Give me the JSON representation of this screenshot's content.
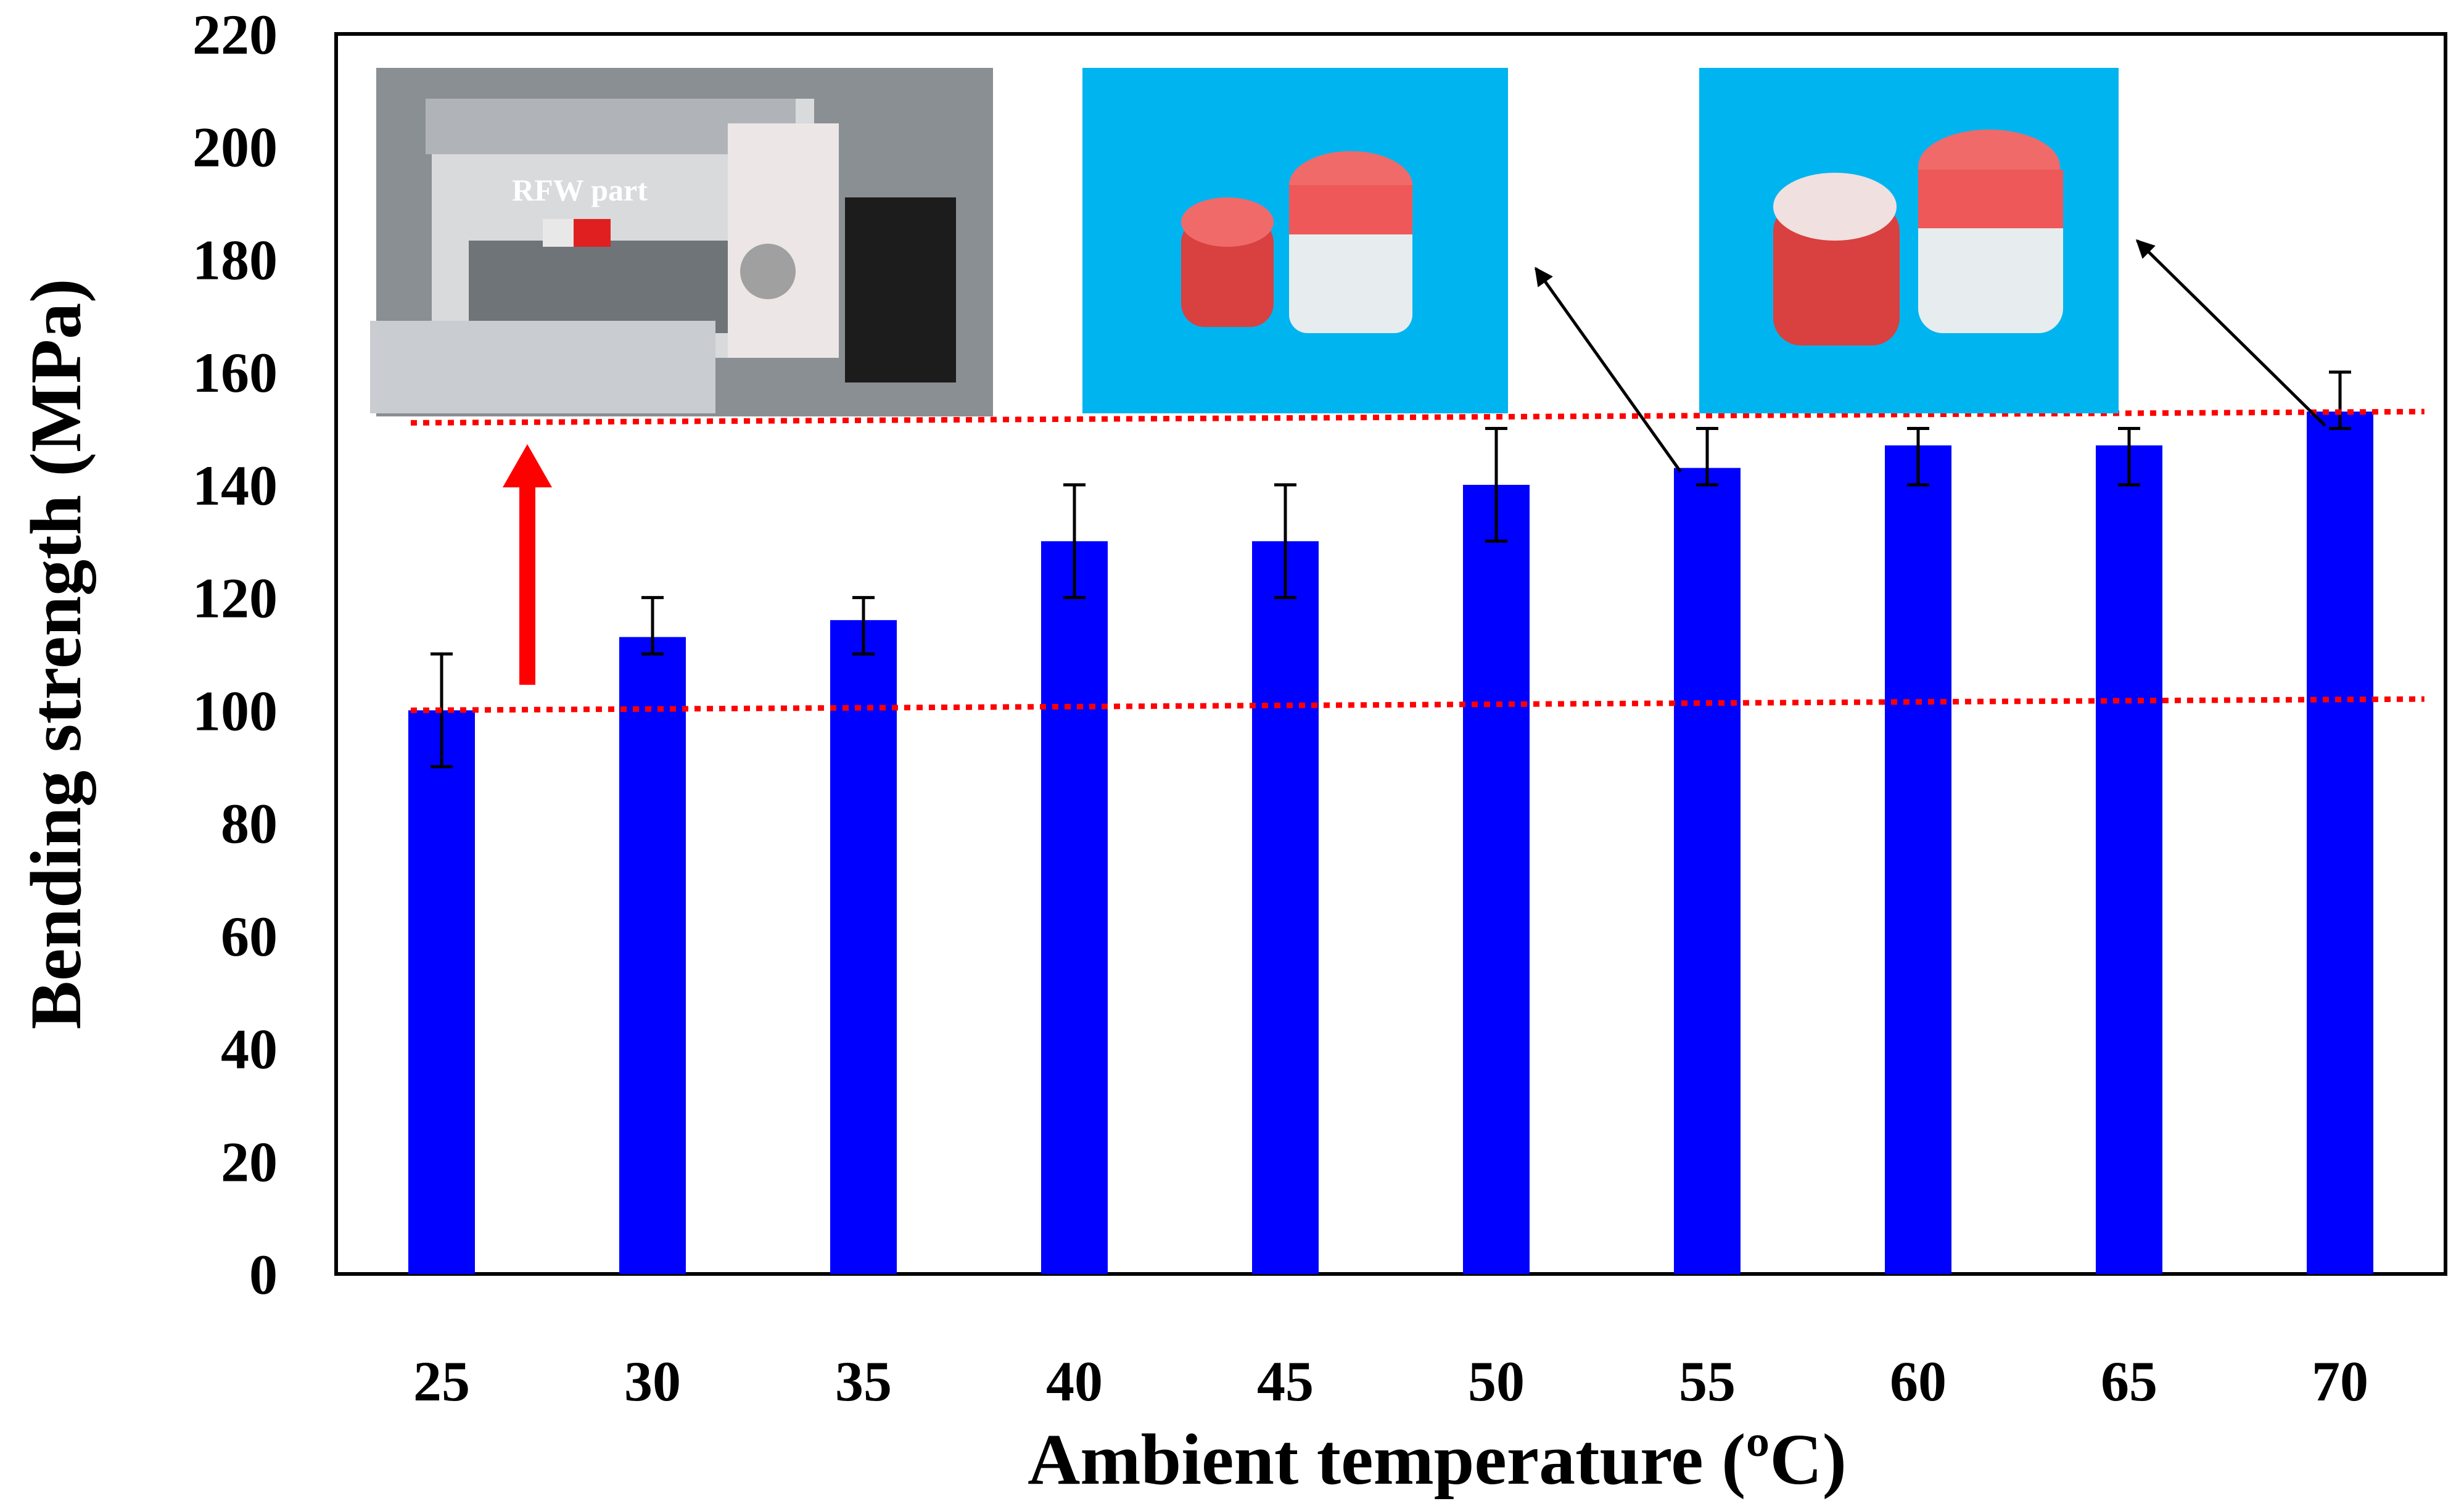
{
  "chart_data": {
    "type": "bar",
    "xlabel": "Ambient temperature (ºC)",
    "ylabel": "Bending strength (MPa)",
    "ylim": [
      0,
      220
    ],
    "yticks": [
      "0",
      "20",
      "40",
      "60",
      "80",
      "100",
      "120",
      "140",
      "160",
      "180",
      "200",
      "220"
    ],
    "categories": [
      "25",
      "30",
      "35",
      "40",
      "45",
      "50",
      "55",
      "60",
      "65",
      "70"
    ],
    "series": [
      {
        "values": [
          100,
          113,
          116,
          130,
          130,
          140,
          143,
          147,
          147,
          153
        ],
        "error_low": [
          90,
          110,
          110,
          120,
          120,
          130,
          140,
          140,
          140,
          150
        ],
        "error_high": [
          110,
          120,
          120,
          140,
          140,
          150,
          150,
          150,
          150,
          160
        ]
      }
    ],
    "reference_lines": [
      {
        "from": [
          25,
          100
        ],
        "to": [
          72,
          102
        ],
        "style": "dotted",
        "color": "#ff0000"
      },
      {
        "from": [
          25,
          151
        ],
        "to": [
          72,
          153
        ],
        "style": "dotted",
        "color": "#ff0000"
      }
    ],
    "grid": false,
    "legend": "none"
  },
  "annotations": {
    "photo_label": "RFW part"
  },
  "colors": {
    "bar": "#0000ff",
    "reference_line": "#ff0000",
    "arrow": "#ff0000",
    "photo_background": "#00b4f0",
    "specimen": "#f04a4a"
  }
}
